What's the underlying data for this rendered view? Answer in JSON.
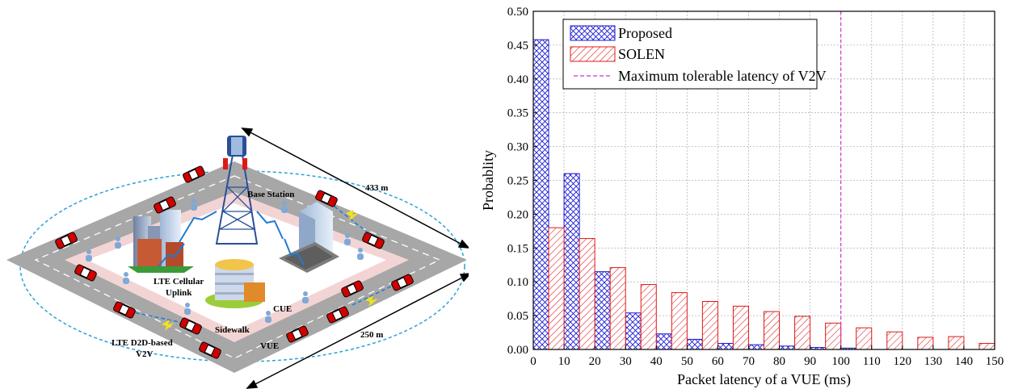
{
  "diagram": {
    "labels": {
      "base_station": "Base Station",
      "cellular_line1": "LTE Cellular",
      "cellular_line2": "Uplink",
      "cue": "CUE",
      "sidewalk": "Sidewalk",
      "vue": "VUE",
      "d2d_line1": "LTE D2D-based",
      "d2d_line2": "V2V",
      "dim1": "433 m",
      "dim2": "250 m"
    },
    "colors": {
      "road": "#a7a7a7",
      "sidewalk": "#f3d4d4",
      "car": "#d10000",
      "person": "#7fa9d6",
      "link": "#1f7bd1",
      "ellipse": "#2ea0d8"
    }
  },
  "chart_data": {
    "type": "bar",
    "xlabel": "Packet latency of a VUE (ms)",
    "ylabel": "Probablity",
    "xlim": [
      0,
      150
    ],
    "ylim": [
      0,
      0.5
    ],
    "xticks": [
      "0",
      "10",
      "20",
      "30",
      "40",
      "50",
      "60",
      "70",
      "80",
      "90",
      "100",
      "110",
      "120",
      "130",
      "140",
      "150"
    ],
    "yticks": [
      "0.00",
      "0.05",
      "0.10",
      "0.15",
      "0.20",
      "0.25",
      "0.30",
      "0.35",
      "0.40",
      "0.45",
      "0.50"
    ],
    "grid": true,
    "legend_position": "top-left",
    "series": [
      {
        "name": "Proposed",
        "color": "#1a1ad6",
        "hatch": "crosshatch",
        "x": [
          2.5,
          12.5,
          22.5,
          32.5,
          42.5,
          52.5,
          62.5,
          72.5,
          82.5,
          92.5,
          102.5
        ],
        "values": [
          0.458,
          0.26,
          0.115,
          0.054,
          0.023,
          0.015,
          0.009,
          0.007,
          0.005,
          0.003,
          0.002
        ]
      },
      {
        "name": "SOLEN",
        "color": "#e01818",
        "hatch": "diagonal",
        "x": [
          7.5,
          17.5,
          27.5,
          37.5,
          47.5,
          57.5,
          67.5,
          77.5,
          87.5,
          97.5,
          107.5,
          117.5,
          127.5,
          137.5,
          147.5
        ],
        "values": [
          0.18,
          0.164,
          0.121,
          0.096,
          0.084,
          0.071,
          0.064,
          0.056,
          0.049,
          0.039,
          0.032,
          0.026,
          0.018,
          0.019,
          0.009
        ]
      }
    ],
    "reference_line": {
      "name": "Maximum tolerable latency of V2V",
      "x": 100,
      "color": "#cc33cc"
    }
  }
}
